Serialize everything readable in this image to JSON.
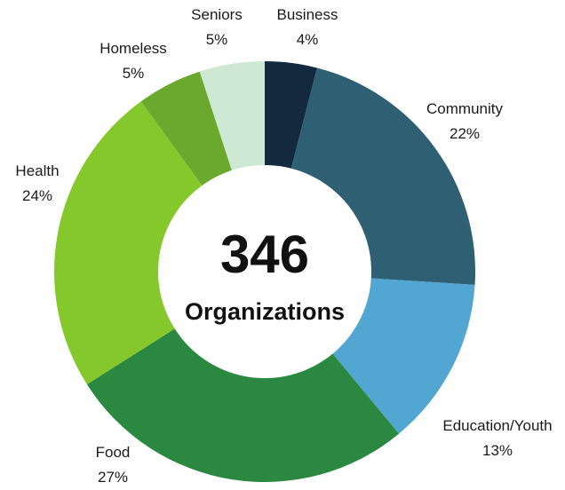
{
  "chart_data": {
    "type": "pie",
    "variant": "donut",
    "center": {
      "value": "346",
      "caption": "Organizations"
    },
    "slices": [
      {
        "name": "Business",
        "label": "4%",
        "value": 4,
        "color": "#132a3e"
      },
      {
        "name": "Community",
        "label": "22%",
        "value": 22,
        "color": "#2f5f73"
      },
      {
        "name": "Education/Youth",
        "label": "13%",
        "value": 13,
        "color": "#52a6d2"
      },
      {
        "name": "Food",
        "label": "27%",
        "value": 27,
        "color": "#2a8840"
      },
      {
        "name": "Health",
        "label": "24%",
        "value": 24,
        "color": "#84c82c"
      },
      {
        "name": "Homeless",
        "label": "5%",
        "value": 5,
        "color": "#6aa82e"
      },
      {
        "name": "Seniors",
        "label": "5%",
        "value": 5,
        "color": "#cde8d3"
      }
    ],
    "legend": "none"
  }
}
